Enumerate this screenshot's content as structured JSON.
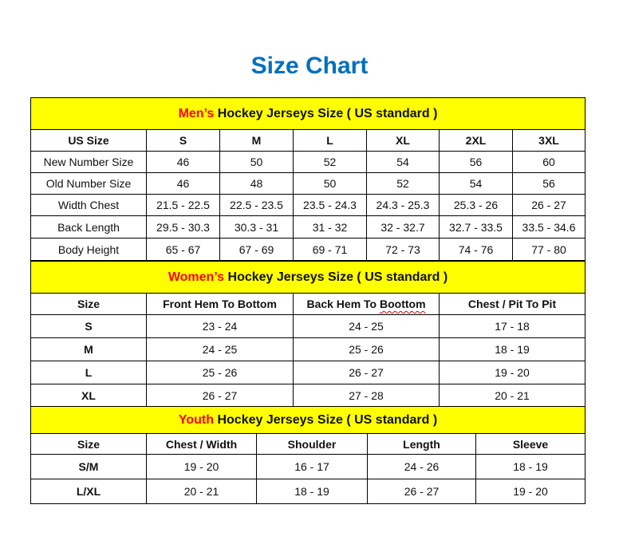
{
  "title": "Size Chart",
  "colors": {
    "title": "#0070c0",
    "banner_bg": "#ffff00",
    "banner_accent": "#ff0000"
  },
  "men": {
    "banner_accent": "Men’s",
    "banner_rest": " Hockey Jerseys Size ( US standard )",
    "headers": [
      "US Size",
      "S",
      "M",
      "L",
      "XL",
      "2XL",
      "3XL"
    ],
    "rows": [
      [
        "New Number Size",
        "46",
        "50",
        "52",
        "54",
        "56",
        "60"
      ],
      [
        "Old Number Size",
        "46",
        "48",
        "50",
        "52",
        "54",
        "56"
      ],
      [
        "Width Chest",
        "21.5 - 22.5",
        "22.5 - 23.5",
        "23.5 - 24.3",
        "24.3 - 25.3",
        "25.3 - 26",
        "26 - 27"
      ],
      [
        "Back Length",
        "29.5 - 30.3",
        "30.3 - 31",
        "31 - 32",
        "32 - 32.7",
        "32.7 - 33.5",
        "33.5 - 34.6"
      ],
      [
        "Body Height",
        "65 - 67",
        "67 - 69",
        "69 - 71",
        "72 - 73",
        "74 - 76",
        "77 - 80"
      ]
    ]
  },
  "women": {
    "banner_accent": "Women’s",
    "banner_rest": " Hockey Jerseys Size ( US standard )",
    "headers": [
      "Size",
      "Front Hem To Bottom",
      "Back Hem To Boottom",
      "Chest / Pit To Pit"
    ],
    "rows": [
      [
        "S",
        "23 - 24",
        "24 - 25",
        "17 - 18"
      ],
      [
        "M",
        "24 - 25",
        "25 - 26",
        "18 - 19"
      ],
      [
        "L",
        "25 - 26",
        "26 - 27",
        "19 - 20"
      ],
      [
        "XL",
        "26 - 27",
        "27 - 28",
        "20 - 21"
      ]
    ]
  },
  "youth": {
    "banner_accent": "Youth",
    "banner_rest": " Hockey Jerseys Size ( US standard )",
    "headers": [
      "Size",
      "Chest / Width",
      "Shoulder",
      "Length",
      "Sleeve"
    ],
    "rows": [
      [
        "S/M",
        "19 - 20",
        "16 - 17",
        "24 - 26",
        "18 - 19"
      ],
      [
        "L/XL",
        "20 - 21",
        "18 - 19",
        "26 - 27",
        "19 - 20"
      ]
    ]
  }
}
